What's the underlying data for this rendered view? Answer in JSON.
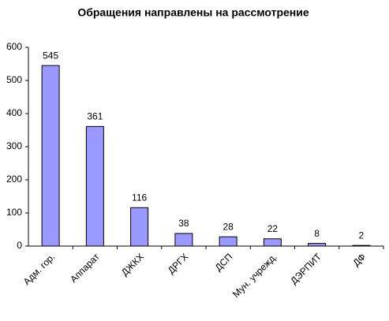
{
  "chart_data": {
    "type": "bar",
    "title": "Обращения направлены на рассмотрение",
    "categories": [
      "Адм. гор.",
      "Аппарат",
      "ДЖКХ",
      "ДРГХ",
      "ДСП",
      "Мун. учрежд.",
      "ДЭРПИТ",
      "ДФ"
    ],
    "values": [
      545,
      361,
      116,
      38,
      28,
      22,
      8,
      2
    ],
    "color": "#9999ff",
    "ylim": [
      0,
      600
    ],
    "yticks": [
      0,
      100,
      200,
      300,
      400,
      500,
      600
    ],
    "grid": false
  }
}
